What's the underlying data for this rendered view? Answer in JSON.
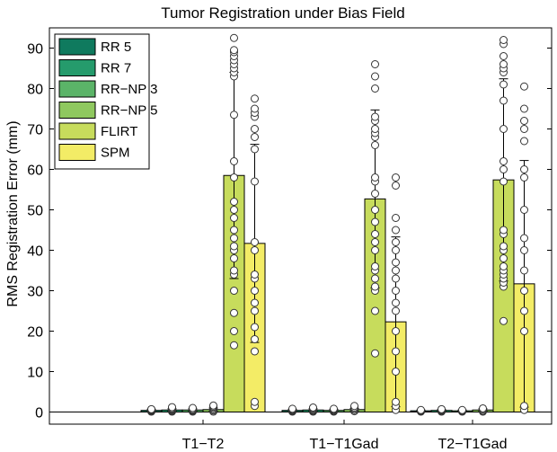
{
  "chart_data": {
    "type": "bar",
    "title": "Tumor Registration under Bias Field",
    "xlabel": "",
    "ylabel": "RMS Registration Error (mm)",
    "ylim": [
      -3,
      95
    ],
    "yticks": [
      0,
      10,
      20,
      30,
      40,
      50,
      60,
      70,
      80,
      90
    ],
    "grid": false,
    "legend_position": "top-left",
    "categories": [
      "T1−T2",
      "T1−T1Gad",
      "T2−T1Gad"
    ],
    "series": [
      {
        "name": "RR 5",
        "color": "#0f7a5e",
        "values": [
          0.4,
          0.4,
          0.3
        ],
        "err": [
          0.3,
          0.3,
          0.2
        ],
        "points": [
          [
            0.1,
            0.2,
            0.3,
            0.4,
            0.5,
            0.6,
            0.7
          ],
          [
            0.1,
            0.2,
            0.3,
            0.5,
            0.6,
            0.8
          ],
          [
            0.1,
            0.2,
            0.3,
            0.4,
            0.5
          ]
        ]
      },
      {
        "name": "RR 7",
        "color": "#259b6c",
        "values": [
          0.5,
          0.5,
          0.4
        ],
        "err": [
          0.3,
          0.3,
          0.2
        ],
        "points": [
          [
            0.1,
            0.3,
            0.5,
            0.7,
            0.9,
            1.2
          ],
          [
            0.1,
            0.2,
            0.4,
            0.6,
            0.9,
            1.1
          ],
          [
            0.1,
            0.2,
            0.4,
            0.5,
            0.7
          ]
        ]
      },
      {
        "name": "RR−NP 3",
        "color": "#5bb468",
        "values": [
          0.5,
          0.4,
          0.3
        ],
        "err": [
          0.3,
          0.3,
          0.2
        ],
        "points": [
          [
            0.1,
            0.3,
            0.5,
            0.7,
            1.0
          ],
          [
            0.1,
            0.2,
            0.4,
            0.6,
            0.8
          ],
          [
            0.1,
            0.2,
            0.3,
            0.5
          ]
        ]
      },
      {
        "name": "RR−NP 5",
        "color": "#8fc85f",
        "values": [
          0.6,
          0.6,
          0.5
        ],
        "err": [
          0.4,
          0.3,
          0.3
        ],
        "points": [
          [
            0.1,
            0.4,
            0.7,
            1.0,
            1.3,
            1.6
          ],
          [
            0.2,
            0.5,
            0.8,
            1.1,
            1.5
          ],
          [
            0.1,
            0.3,
            0.6,
            0.9
          ]
        ]
      },
      {
        "name": "FLIRT",
        "color": "#c7dc5c",
        "values": [
          58.5,
          52.7,
          57.4
        ],
        "err": [
          25.5,
          22.0,
          25.0
        ],
        "points": [
          [
            16.5,
            20,
            24.5,
            30,
            34,
            35,
            38,
            40,
            41,
            43,
            45,
            48,
            50,
            52,
            58,
            62,
            73.5,
            83,
            84,
            85,
            86,
            87,
            88,
            89,
            89.5,
            92.5
          ],
          [
            14.5,
            25,
            30,
            31,
            33,
            35,
            36,
            40,
            42,
            44,
            47,
            50,
            54,
            57,
            58,
            66,
            68,
            69,
            70,
            72,
            73,
            80,
            83,
            86
          ],
          [
            22.5,
            31,
            32,
            33,
            34,
            35,
            36,
            38,
            40,
            41,
            44,
            45,
            57,
            60,
            62,
            70,
            77,
            81,
            84,
            85,
            86,
            88,
            91,
            92
          ]
        ]
      },
      {
        "name": "SPM",
        "color": "#f3ec66",
        "values": [
          41.7,
          22.3,
          31.7
        ],
        "err": [
          24.5,
          21.0,
          30.5
        ],
        "points": [
          [
            1.5,
            2.5,
            15,
            18,
            21,
            25,
            27,
            30,
            33,
            34,
            40,
            42,
            57,
            65,
            68,
            70,
            73,
            74,
            75,
            77.5
          ],
          [
            0.5,
            1.5,
            2.5,
            10,
            15,
            20,
            25,
            27,
            30,
            33,
            35,
            37,
            40,
            42,
            45,
            48,
            56,
            58
          ],
          [
            0.5,
            1.5,
            20,
            25,
            30,
            35,
            40,
            43,
            50,
            58,
            60,
            67,
            70,
            72,
            75,
            80.5
          ]
        ]
      }
    ]
  }
}
